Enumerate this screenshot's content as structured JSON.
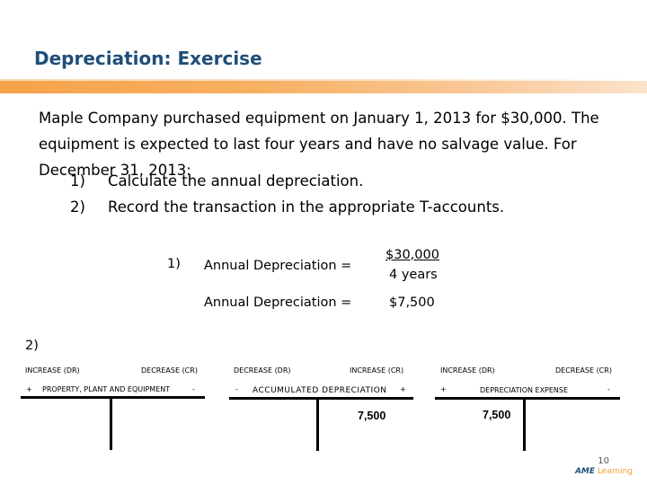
{
  "slide": {
    "title": "Depreciation: Exercise",
    "problem_text": "Maple Company purchased equipment on January 1, 2013 for $30,000. The equipment is expected to last four years and have no salvage value. For December 31, 2013:",
    "tasks": [
      {
        "num": "1)",
        "text": "Calculate the annual depreciation."
      },
      {
        "num": "2)",
        "text": "Record the transaction in the appropriate T-accounts."
      }
    ],
    "calc": {
      "marker": "1)",
      "line1_label": "Annual Depreciation =",
      "numerator": "$30,000",
      "denominator": "4 years",
      "line2_label": "Annual Depreciation =",
      "result": "$7,500"
    },
    "section2_marker": "2)",
    "t_accounts": [
      {
        "increase_label": "INCREASE (DR)",
        "decrease_label": "DECREASE (CR)",
        "left_sign": "+",
        "right_sign": "-",
        "title": "PROPERTY, PLANT AND EQUIPMENT",
        "left_amount": "",
        "right_amount": ""
      },
      {
        "increase_label": "INCREASE (CR)",
        "decrease_label": "DECREASE (DR)",
        "left_sign": "-",
        "right_sign": "+",
        "title": "ACCUMULATED DEPRECIATION",
        "left_amount": "",
        "right_amount": "7,500"
      },
      {
        "increase_label": "INCREASE (DR)",
        "decrease_label": "DECREASE (CR)",
        "left_sign": "+",
        "right_sign": "-",
        "title": "DEPRECIATION EXPENSE",
        "left_amount": "7,500",
        "right_amount": ""
      }
    ],
    "page_number": "10",
    "logo": {
      "brand": "AME",
      "suffix": "Learning"
    },
    "colors": {
      "title": "#1f4e79",
      "accent_bar": "#f6a34a"
    }
  }
}
